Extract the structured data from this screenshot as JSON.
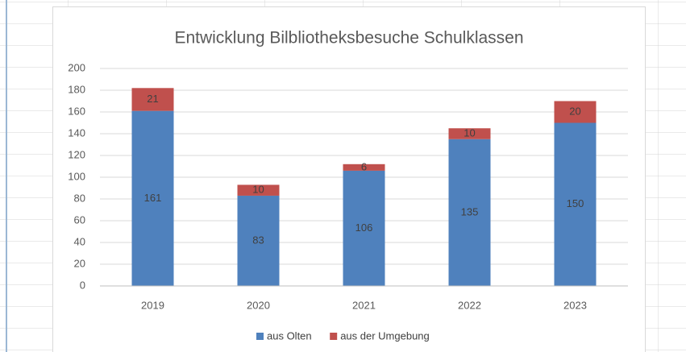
{
  "chart_data": {
    "type": "stacked_bar",
    "title": "Entwicklung Bilbliotheksbesuche Schulklassen",
    "categories": [
      "2019",
      "2020",
      "2021",
      "2022",
      "2023"
    ],
    "series": [
      {
        "name": "aus Olten",
        "color": "#4f81bd",
        "values": [
          161,
          83,
          106,
          135,
          150
        ]
      },
      {
        "name": "aus der Umgebung",
        "color": "#c0504d",
        "values": [
          21,
          10,
          6,
          10,
          20
        ]
      }
    ],
    "ylim": [
      0,
      200
    ],
    "yticks": [
      0,
      20,
      40,
      60,
      80,
      100,
      120,
      140,
      160,
      180,
      200
    ],
    "grid": true,
    "legend": "bottom"
  }
}
